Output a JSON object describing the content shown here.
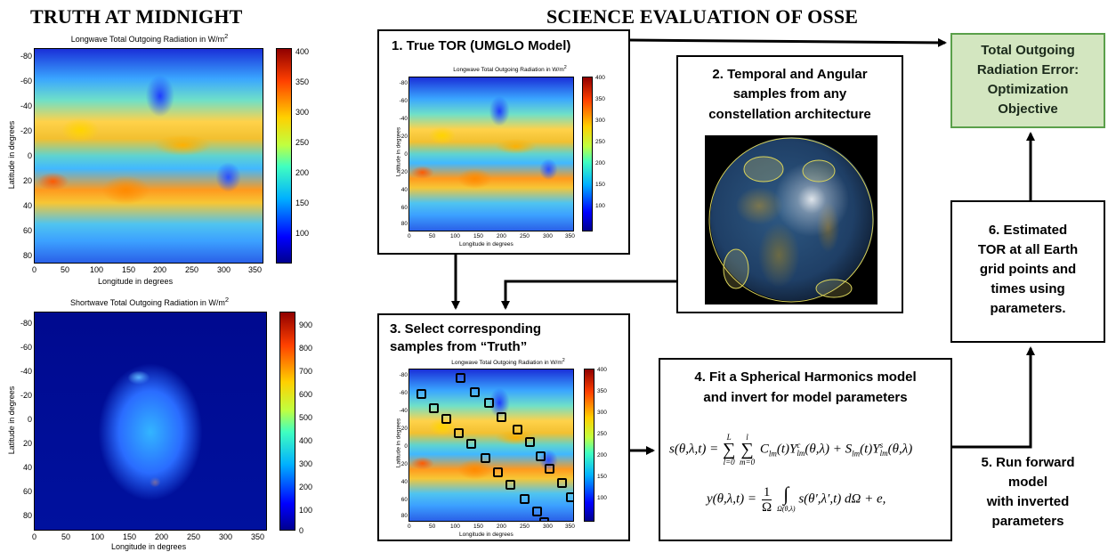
{
  "headings": {
    "left": "TRUTH AT MIDNIGHT",
    "right": "SCIENCE EVALUATION OF OSSE"
  },
  "left_panel": {
    "longwave": {
      "title": "Longwave Total Outgoing Radiation in W/m",
      "title_sup": "2",
      "ylabel": "Latitude in degrees",
      "xlabel": "Longitude in degrees",
      "yticks": [
        "-80",
        "-60",
        "-40",
        "-20",
        "0",
        "20",
        "40",
        "60",
        "80"
      ],
      "xticks": [
        "0",
        "50",
        "100",
        "150",
        "200",
        "250",
        "300",
        "350"
      ],
      "cbar_ticks": [
        "400",
        "350",
        "300",
        "250",
        "200",
        "150",
        "100"
      ]
    },
    "shortwave": {
      "title": "Shortwave Total Outgoing Radiation in W/m",
      "title_sup": "2",
      "ylabel": "Latitude in degrees",
      "xlabel": "Longitude in degrees",
      "yticks": [
        "-80",
        "-60",
        "-40",
        "-20",
        "0",
        "20",
        "40",
        "60",
        "80"
      ],
      "xticks": [
        "0",
        "50",
        "100",
        "150",
        "200",
        "250",
        "300",
        "350"
      ],
      "cbar_ticks": [
        "900",
        "800",
        "700",
        "600",
        "500",
        "400",
        "300",
        "200",
        "100",
        "0"
      ]
    }
  },
  "flow": {
    "box1": {
      "title": "1. True TOR (UMGLO Model)",
      "plot_title": "Longwave Total Outgoing Radiation in W/m",
      "plot_title_sup": "2",
      "ylabel": "Latitude in degrees",
      "xlabel": "Longitude in degrees",
      "yticks": [
        "-80",
        "-60",
        "-40",
        "-20",
        "0",
        "20",
        "40",
        "60",
        "80"
      ],
      "xticks": [
        "0",
        "50",
        "100",
        "150",
        "200",
        "250",
        "300",
        "350"
      ],
      "cbar_ticks": [
        "400",
        "350",
        "300",
        "250",
        "200",
        "150",
        "100"
      ]
    },
    "box2": {
      "line1": "2. Temporal and Angular",
      "line2": "samples  from any",
      "line3": "constellation architecture"
    },
    "box3": {
      "line1": "3. Select corresponding",
      "line2": "samples from “Truth”",
      "plot_title": "Longwave Total Outgoing Radiation in W/m",
      "plot_title_sup": "2",
      "ylabel": "Latitude in degrees",
      "xlabel": "Longitude in degrees",
      "yticks": [
        "-80",
        "-60",
        "-40",
        "-20",
        "0",
        "20",
        "40",
        "60",
        "80"
      ],
      "xticks": [
        "0",
        "50",
        "100",
        "150",
        "200",
        "250",
        "300",
        "350"
      ],
      "cbar_ticks": [
        "400",
        "350",
        "300",
        "250",
        "200",
        "150",
        "100"
      ]
    },
    "box4": {
      "line1": "4. Fit a Spherical Harmonics model",
      "line2": "and invert for model parameters",
      "eq1_lhs": "s(θ,λ,t) =",
      "eq1_sum1_top": "L",
      "eq1_sum1_bot": "l=0",
      "eq1_sum2_top": "l",
      "eq1_sum2_bot": "m=0",
      "eq1_body": "C",
      "eq1_sub1": "lm",
      "eq1_mid": "(t)Y",
      "eq1_sup2": "c",
      "eq1_sub2": "lm",
      "eq1_mid2": "(θ,λ) + S",
      "eq1_sub3": "lm",
      "eq1_mid3": "(t)Y",
      "eq1_sup4": "s",
      "eq1_sub4": "lm",
      "eq1_end": "(θ,λ)",
      "eq2_lhs": "y(θ,λ,t) =",
      "eq2_num": "1",
      "eq2_den": "Ω",
      "eq2_int_sub": "Ω(θ,λ)",
      "eq2_body": "s(θ′,λ′,t) dΩ + e,"
    },
    "box5": {
      "line1": "5. Run forward",
      "line2": "model",
      "line3": "with inverted",
      "line4": "parameters"
    },
    "box6": {
      "line1": "6. Estimated",
      "line2": "TOR at all Earth",
      "line3": "grid points and",
      "line4": "times using",
      "line5": "parameters."
    },
    "objective": {
      "line1": "Total Outgoing",
      "line2": "Radiation Error:",
      "line3": "Optimization",
      "line4": "Objective",
      "bg_color": "#d3e6c0",
      "border_color": "#5aa04a"
    }
  }
}
